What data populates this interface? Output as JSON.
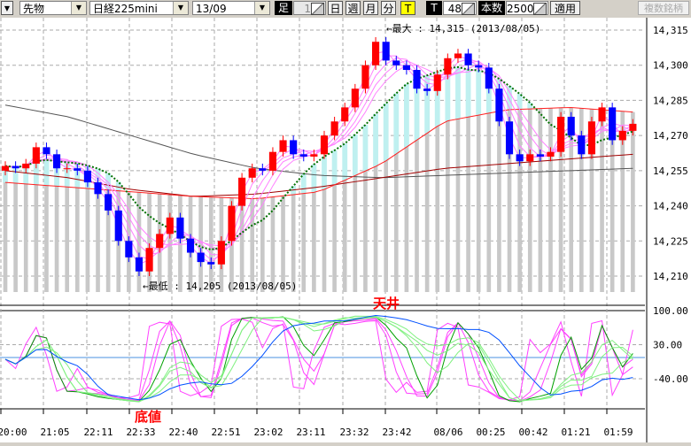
{
  "toolbar": {
    "market": "先物",
    "symbol": "日経225mini",
    "contract": "13/09",
    "ashi_label": "足",
    "ashi_value": "1",
    "day": "日",
    "week": "週",
    "month": "月",
    "minute": "分",
    "tick": "T",
    "t_label": "T",
    "t_value": "48",
    "count_label": "本数",
    "count_value": "2500",
    "apply": "適用",
    "multi": "複数銘柄"
  },
  "annotations": {
    "max": "←最大 : 14,315 (2013/08/05)",
    "min": "←最低 : 14,205 (2013/08/05)",
    "top": "天井",
    "bottom": "底値"
  },
  "colors": {
    "up": "#ff0000",
    "down": "#0000ff",
    "highlight": "#ffff00"
  },
  "chart_data": {
    "type": "candlestick",
    "price_axis": {
      "ticks": [
        "14,315",
        "14,300",
        "14,285",
        "14,270",
        "14,255",
        "14,240",
        "14,225",
        "14,210"
      ],
      "range": [
        14202,
        14320
      ]
    },
    "oscillator_axis": {
      "ticks": [
        "100.00",
        "30.00",
        "-40.00"
      ],
      "range": [
        -105,
        105
      ]
    },
    "x_ticks": [
      "20:00",
      "21:05",
      "22:11",
      "22:33",
      "22:40",
      "22:51",
      "23:02",
      "23:11",
      "23:32",
      "23:42",
      "08/06",
      "00:25",
      "00:42",
      "01:21",
      "01:59"
    ],
    "closes": [
      14257,
      14256,
      14258,
      14265,
      14262,
      14256,
      14256,
      14255,
      14250,
      14245,
      14238,
      14225,
      14218,
      14212,
      14222,
      14228,
      14235,
      14226,
      14220,
      14216,
      14215,
      14225,
      14240,
      14252,
      14256,
      14255,
      14263,
      14268,
      14262,
      14261,
      14262,
      14270,
      14276,
      14282,
      14290,
      14300,
      14310,
      14302,
      14300,
      14298,
      14290,
      14289,
      14296,
      14303,
      14305,
      14300,
      14299,
      14290,
      14276,
      14262,
      14259,
      14262,
      14261,
      14263,
      14278,
      14270,
      14262,
      14276,
      14282,
      14268,
      14272,
      14275
    ],
    "ma_gray": [
      14283,
      14278,
      14270,
      14262,
      14256,
      14253,
      14252,
      14253,
      14254,
      14255,
      14256
    ],
    "ma_red": [
      14250,
      14248,
      14246,
      14244,
      14243,
      14246,
      14258,
      14276,
      14281,
      14282,
      14280
    ],
    "ma_darkred": [
      14255,
      14252,
      14247,
      14244,
      14245,
      14248,
      14252,
      14256,
      14258,
      14260,
      14262
    ]
  }
}
